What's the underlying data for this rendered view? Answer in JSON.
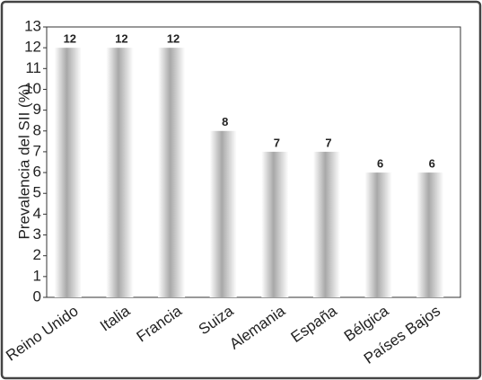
{
  "chart_data": {
    "type": "bar",
    "y_label": "Prevalencia del SII (%)",
    "categories": [
      "Reino Unido",
      "Italia",
      "Francia",
      "Suiza",
      "Alemania",
      "España",
      "Bélgica",
      "Países Bajos"
    ],
    "values": [
      12,
      12,
      12,
      8,
      7,
      7,
      6,
      6
    ],
    "color": "#a8a8a8",
    "ylim": [
      0,
      13
    ],
    "yticks": [
      0,
      1,
      2,
      3,
      4,
      5,
      6,
      7,
      8,
      9,
      10,
      11,
      12,
      13
    ],
    "grid": false
  }
}
